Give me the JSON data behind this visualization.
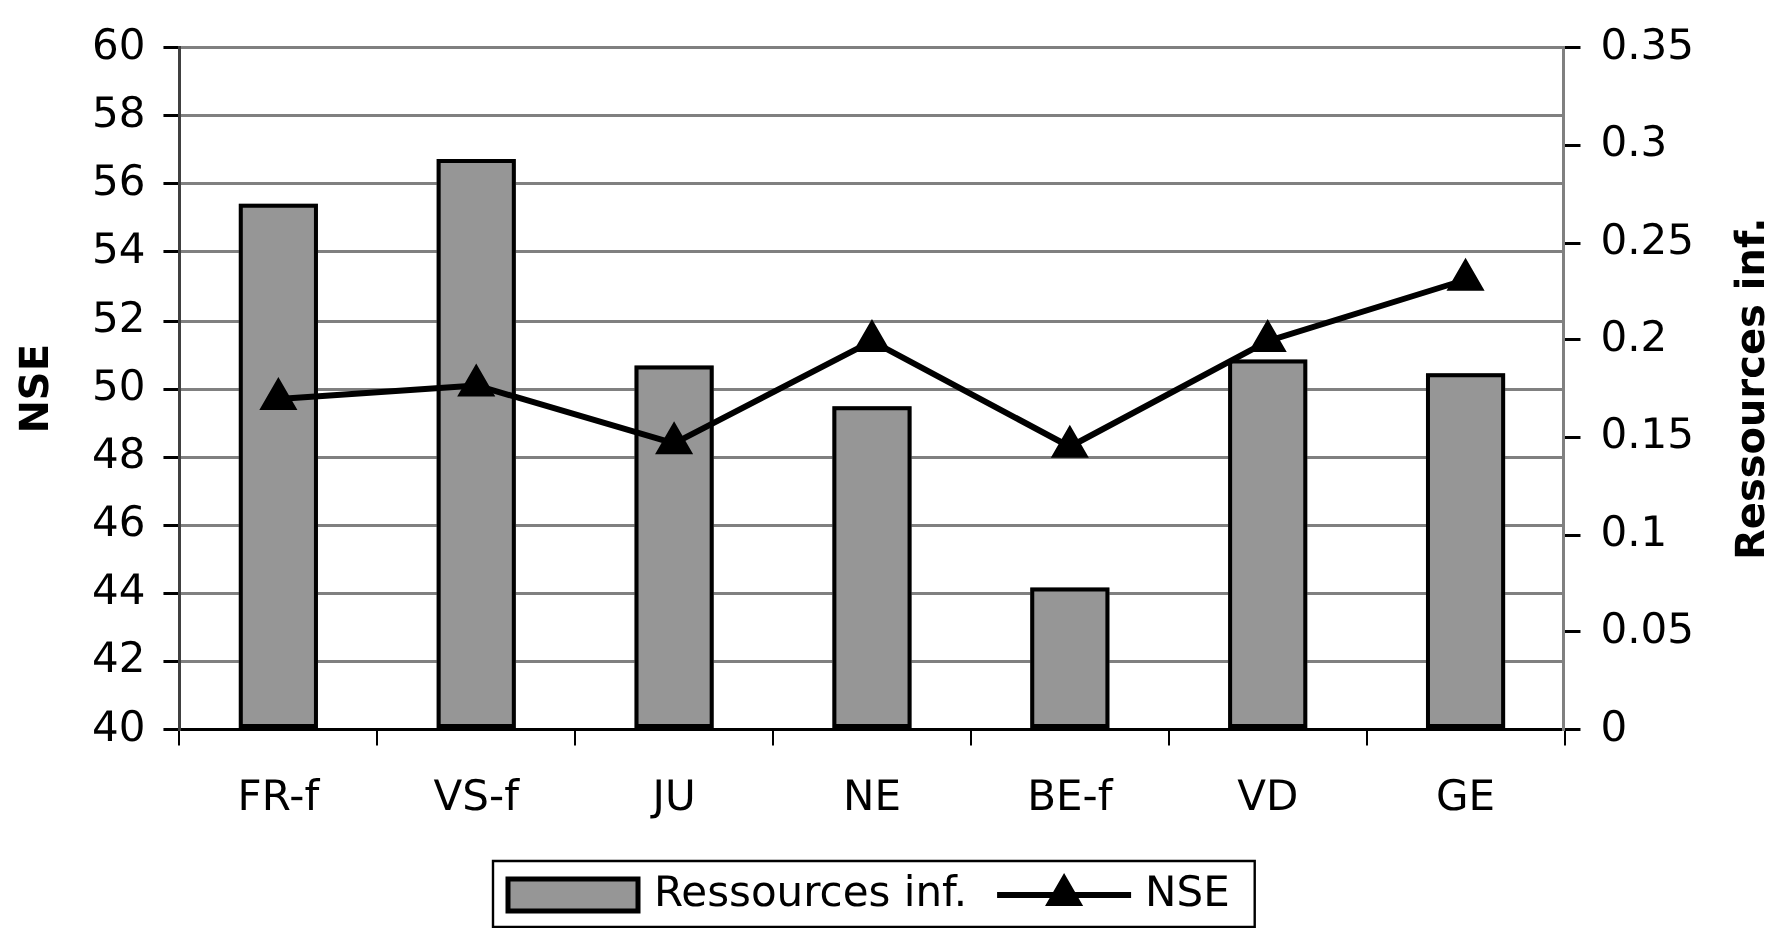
{
  "chart_data": {
    "type": "bar",
    "categories": [
      "FR-f",
      "VS-f",
      "JU",
      "NE",
      "BE-f",
      "VD",
      "GE"
    ],
    "series": [
      {
        "name": "Ressources inf.",
        "axis": "y2",
        "color": "#969696",
        "values": [
          0.27,
          0.293,
          0.187,
          0.166,
          0.073,
          0.19,
          0.183
        ]
      },
      {
        "name": "NSE",
        "type": "line",
        "color": "#000000",
        "values": [
          49.7,
          50.1,
          48.4,
          51.4,
          48.3,
          51.4,
          53.2
        ]
      }
    ],
    "ylabel": "NSE",
    "y2label": "Ressources inf.",
    "ylim": [
      40,
      60
    ],
    "yticks": [
      40,
      42,
      44,
      46,
      48,
      50,
      52,
      54,
      56,
      58,
      60
    ],
    "y2lim": [
      0,
      0.35
    ],
    "y2ticks": [
      0,
      0.05,
      0.1,
      0.15,
      0.2,
      0.25,
      0.3,
      0.35
    ],
    "grid": "y",
    "legend": "bottom",
    "marker": "triangle"
  }
}
